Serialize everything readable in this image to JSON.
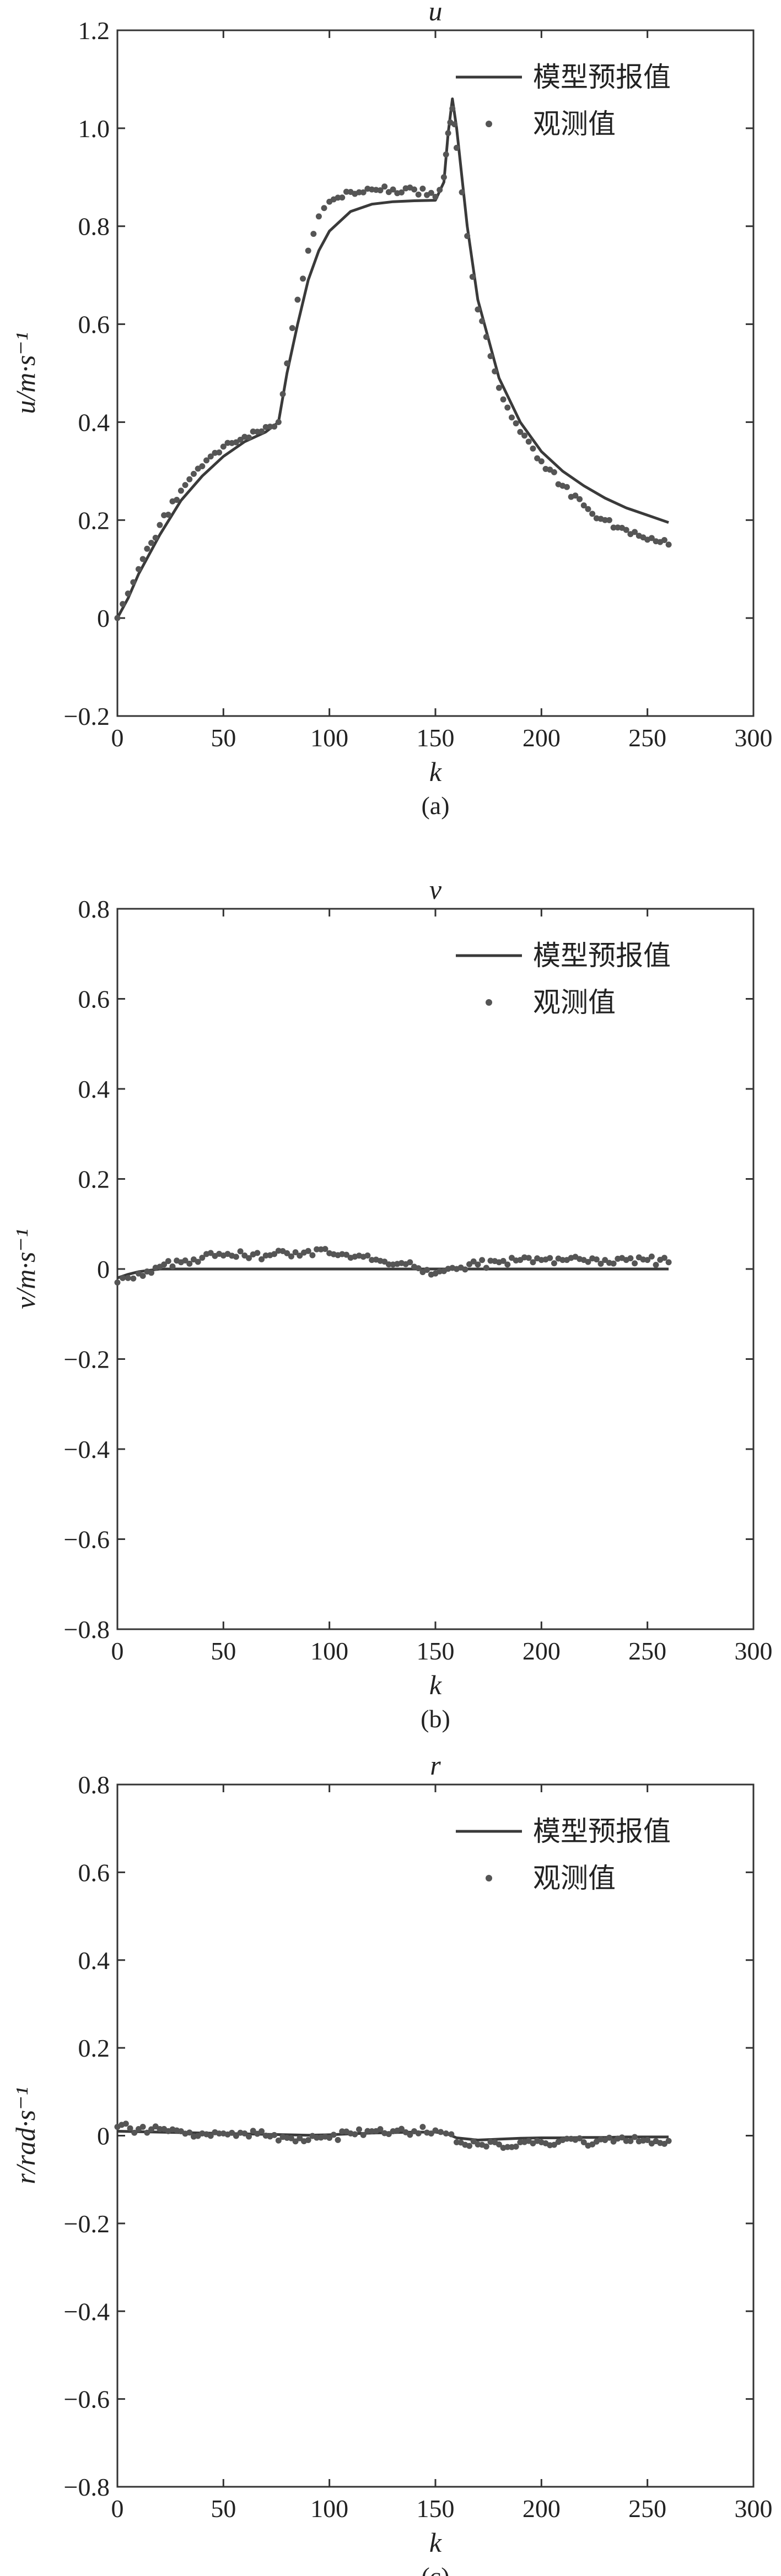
{
  "chart_data": [
    {
      "type": "line",
      "title": "u",
      "xlabel": "k",
      "ylabel": "u/m·s⁻¹",
      "caption": "(a)",
      "xlim": [
        0,
        300
      ],
      "ylim": [
        -0.2,
        1.2
      ],
      "xticks": [
        0,
        50,
        100,
        150,
        200,
        250,
        300
      ],
      "yticks": [
        -0.2,
        0,
        0.2,
        0.4,
        0.6,
        0.8,
        1.0,
        1.2
      ],
      "ytick_labels": [
        "−0.2",
        "0",
        "0.2",
        "0.4",
        "0.6",
        "0.8",
        "1.0",
        "1.2"
      ],
      "legend": {
        "placement": "top-right",
        "entries": [
          "模型预报值",
          "观测值"
        ]
      },
      "series": [
        {
          "name": "模型预报值",
          "style": "line",
          "x": [
            0,
            5,
            10,
            20,
            30,
            40,
            50,
            60,
            70,
            76,
            80,
            85,
            90,
            95,
            100,
            110,
            120,
            130,
            140,
            150,
            154,
            156,
            158,
            160,
            165,
            170,
            180,
            190,
            200,
            210,
            220,
            230,
            240,
            250,
            260
          ],
          "y": [
            0,
            0.04,
            0.09,
            0.17,
            0.24,
            0.29,
            0.33,
            0.36,
            0.38,
            0.4,
            0.5,
            0.6,
            0.69,
            0.75,
            0.79,
            0.83,
            0.845,
            0.85,
            0.852,
            0.853,
            0.89,
            0.99,
            1.06,
            1.0,
            0.8,
            0.65,
            0.49,
            0.4,
            0.34,
            0.3,
            0.27,
            0.245,
            0.225,
            0.21,
            0.195
          ]
        },
        {
          "name": "观测值",
          "style": "points",
          "x": [
            0,
            5,
            10,
            20,
            30,
            40,
            50,
            60,
            70,
            76,
            80,
            85,
            90,
            95,
            100,
            110,
            120,
            130,
            140,
            150,
            154,
            156,
            158,
            160,
            165,
            170,
            180,
            190,
            200,
            210,
            220,
            230,
            240,
            250,
            260
          ],
          "y": [
            0,
            0.05,
            0.1,
            0.19,
            0.26,
            0.31,
            0.35,
            0.37,
            0.39,
            0.4,
            0.52,
            0.65,
            0.75,
            0.82,
            0.85,
            0.87,
            0.875,
            0.875,
            0.875,
            0.86,
            0.9,
            0.99,
            1.04,
            0.96,
            0.78,
            0.63,
            0.47,
            0.38,
            0.32,
            0.27,
            0.23,
            0.2,
            0.18,
            0.16,
            0.15
          ]
        }
      ]
    },
    {
      "type": "line",
      "title": "v",
      "xlabel": "k",
      "ylabel": "v/m·s⁻¹",
      "caption": "(b)",
      "xlim": [
        0,
        300
      ],
      "ylim": [
        -0.8,
        0.8
      ],
      "xticks": [
        0,
        50,
        100,
        150,
        200,
        250,
        300
      ],
      "yticks": [
        -0.8,
        -0.6,
        -0.4,
        -0.2,
        0,
        0.2,
        0.4,
        0.6,
        0.8
      ],
      "ytick_labels": [
        "−0.8",
        "−0.6",
        "−0.4",
        "−0.2",
        "0",
        "0.2",
        "0.4",
        "0.6",
        "0.8"
      ],
      "legend": {
        "placement": "top-right",
        "entries": [
          "模型预报值",
          "观测值"
        ]
      },
      "series": [
        {
          "name": "模型预报值",
          "style": "line",
          "x": [
            0,
            5,
            10,
            15,
            20,
            30,
            40,
            60,
            80,
            100,
            120,
            140,
            160,
            180,
            200,
            220,
            240,
            260
          ],
          "y": [
            -0.02,
            -0.012,
            -0.006,
            -0.003,
            0,
            0,
            0,
            0,
            0,
            0,
            0,
            0,
            0,
            0,
            0,
            0,
            0,
            0
          ]
        },
        {
          "name": "观测值",
          "style": "points",
          "x": [
            0,
            5,
            10,
            20,
            30,
            40,
            50,
            60,
            70,
            80,
            90,
            100,
            110,
            120,
            130,
            140,
            150,
            160,
            170,
            180,
            190,
            200,
            210,
            220,
            230,
            240,
            250,
            260
          ],
          "y": [
            -0.03,
            -0.02,
            -0.01,
            0.005,
            0.015,
            0.025,
            0.03,
            0.03,
            0.03,
            0.035,
            0.04,
            0.035,
            0.025,
            0.02,
            0.01,
            0.005,
            -0.01,
            0,
            0.01,
            0.015,
            0.02,
            0.02,
            0.02,
            0.02,
            0.02,
            0.02,
            0.02,
            0.015
          ]
        }
      ]
    },
    {
      "type": "line",
      "title": "r",
      "xlabel": "k",
      "ylabel": "r/rad·s⁻¹",
      "caption": "(c)",
      "xlim": [
        0,
        300
      ],
      "ylim": [
        -0.8,
        0.8
      ],
      "xticks": [
        0,
        50,
        100,
        150,
        200,
        250,
        300
      ],
      "yticks": [
        -0.8,
        -0.6,
        -0.4,
        -0.2,
        0,
        0.2,
        0.4,
        0.6,
        0.8
      ],
      "ytick_labels": [
        "−0.8",
        "−0.6",
        "−0.4",
        "−0.2",
        "0",
        "0.2",
        "0.4",
        "0.6",
        "0.8"
      ],
      "legend": {
        "placement": "top-right",
        "entries": [
          "模型预报值",
          "观测值"
        ]
      },
      "series": [
        {
          "name": "模型预报值",
          "style": "line",
          "x": [
            0,
            10,
            20,
            30,
            40,
            50,
            60,
            70,
            80,
            90,
            100,
            110,
            120,
            130,
            140,
            150,
            155,
            160,
            170,
            180,
            190,
            200,
            210,
            220,
            230,
            240,
            250,
            260
          ],
          "y": [
            0.01,
            0.009,
            0.008,
            0.007,
            0.006,
            0.005,
            0.004,
            0.003,
            0.002,
            0.001,
            0.002,
            0.004,
            0.006,
            0.007,
            0.008,
            0.008,
            0.005,
            -0.005,
            -0.01,
            -0.008,
            -0.006,
            -0.005,
            -0.005,
            -0.004,
            -0.004,
            -0.003,
            -0.003,
            -0.003
          ]
        },
        {
          "name": "观测值",
          "style": "points",
          "x": [
            0,
            10,
            20,
            30,
            40,
            50,
            60,
            70,
            80,
            90,
            100,
            110,
            120,
            130,
            140,
            150,
            155,
            160,
            170,
            180,
            190,
            200,
            210,
            220,
            230,
            240,
            250,
            260
          ],
          "y": [
            0.02,
            0.015,
            0.015,
            0.01,
            0.005,
            0.005,
            0.005,
            0,
            -0.005,
            -0.01,
            -0.005,
            0.005,
            0.01,
            0.01,
            0.01,
            0.012,
            0.005,
            -0.015,
            -0.02,
            -0.02,
            -0.015,
            -0.015,
            -0.01,
            -0.015,
            -0.01,
            -0.012,
            -0.01,
            -0.012
          ]
        }
      ]
    }
  ]
}
